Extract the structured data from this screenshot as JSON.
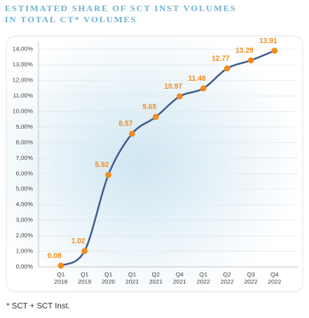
{
  "chart_data": {
    "type": "line",
    "title": "ESTIMATED SHARE OF SCT INST VOLUMES IN TOTAL CT* VOLUMES",
    "footnote": "* SCT + SCT Inst.",
    "categories": [
      [
        "Q1",
        "2018"
      ],
      [
        "Q1",
        "2019"
      ],
      [
        "Q1",
        "2020"
      ],
      [
        "Q1",
        "2021"
      ],
      [
        "Q2",
        "2021"
      ],
      [
        "Q4",
        "2021"
      ],
      [
        "Q1",
        "2022"
      ],
      [
        "Q2",
        "2022"
      ],
      [
        "Q3",
        "2022"
      ],
      [
        "Q4",
        "2022"
      ]
    ],
    "values": [
      0.08,
      1.02,
      5.92,
      8.57,
      9.65,
      10.97,
      11.48,
      12.77,
      13.29,
      13.91
    ],
    "color": "#3d5a8c",
    "marker_color": "#f28c1e",
    "ylim": [
      0,
      14.5
    ],
    "yticks": [
      {
        "value": 0,
        "label": "0,00%"
      },
      {
        "value": 1,
        "label": "1,00%"
      },
      {
        "value": 2,
        "label": "2,00%"
      },
      {
        "value": 3,
        "label": "3,00%"
      },
      {
        "value": 4,
        "label": "4,00%"
      },
      {
        "value": 5,
        "label": "5,00%"
      },
      {
        "value": 6,
        "label": "6,00%"
      },
      {
        "value": 7,
        "label": "7,00%"
      },
      {
        "value": 8,
        "label": "8,00%"
      },
      {
        "value": 9,
        "label": "9,00%"
      },
      {
        "value": 10,
        "label": "10,00%"
      },
      {
        "value": 11,
        "label": "11,00%"
      },
      {
        "value": 12,
        "label": "12,00%"
      },
      {
        "value": 13,
        "label": "13,00%"
      },
      {
        "value": 14,
        "label": "14,00%"
      }
    ],
    "grid": true
  }
}
